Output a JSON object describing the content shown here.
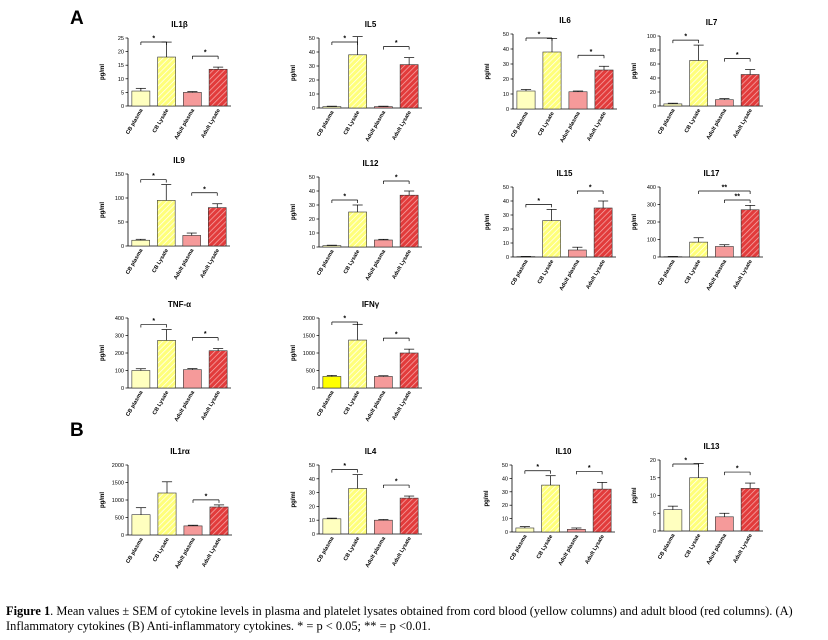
{
  "panels": {
    "a": "A",
    "b": "B"
  },
  "caption": {
    "lead": "Figure 1",
    "text": ". Mean values ± SEM of cytokine levels in plasma and platelet lysates obtained from cord blood (yellow columns) and adult blood (red columns). (A) Inflammatory cytokines (B) Anti-inflammatory cytokines. * = p < 0.05; ** = p <0.01."
  },
  "colors": {
    "cb_plasma": "#ffffbf",
    "cb_plasma_bright": "#ffff00",
    "cb_lysate": "#ffff7a",
    "adult_plasma": "#f59a9a",
    "adult_lysate": "#e23b3b",
    "hatch": "#ffffff"
  },
  "chart_data": [
    {
      "type": "bar",
      "title": "IL1β",
      "ylabel": "pg/ml",
      "categories": [
        "CB plasma",
        "CB Lysate",
        "Adult plasma",
        "Adult Lysate"
      ],
      "values": [
        5.5,
        18,
        5,
        13.5
      ],
      "errors": [
        1,
        5.5,
        0.3,
        0.8
      ],
      "ylim": [
        0,
        25
      ],
      "yticks": [
        0,
        5,
        10,
        15,
        20,
        25
      ],
      "sig": [
        {
          "from": 0,
          "to": 1,
          "label": "*"
        },
        {
          "from": 2,
          "to": 3,
          "label": "*"
        }
      ]
    },
    {
      "type": "bar",
      "title": "IL5",
      "ylabel": "pg/ml",
      "categories": [
        "CB plasma",
        "CB Lysate",
        "Adult plasma",
        "Adult Lysate"
      ],
      "values": [
        1,
        38,
        1,
        31
      ],
      "errors": [
        0.3,
        13,
        0.3,
        5
      ],
      "ylim": [
        0,
        50
      ],
      "yticks": [
        0,
        10,
        20,
        30,
        40,
        50
      ],
      "sig": [
        {
          "from": 0,
          "to": 1,
          "label": "*"
        },
        {
          "from": 2,
          "to": 3,
          "label": "*"
        }
      ]
    },
    {
      "type": "bar",
      "title": "IL6",
      "ylabel": "pg/ml",
      "categories": [
        "CB plasma",
        "CB Lysate",
        "Adult plasma",
        "Adult Lysate"
      ],
      "values": [
        12,
        38,
        11.5,
        26
      ],
      "errors": [
        1,
        9,
        0.5,
        2.5
      ],
      "ylim": [
        0,
        50
      ],
      "yticks": [
        0,
        10,
        20,
        30,
        40,
        50
      ],
      "sig": [
        {
          "from": 0,
          "to": 1,
          "label": "*"
        },
        {
          "from": 2,
          "to": 3,
          "label": "*"
        }
      ]
    },
    {
      "type": "bar",
      "title": "IL7",
      "ylabel": "pg/ml",
      "categories": [
        "CB plasma",
        "CB Lysate",
        "Adult plasma",
        "Adult Lysate"
      ],
      "values": [
        3,
        65,
        9,
        45
      ],
      "errors": [
        1,
        22,
        1.5,
        7
      ],
      "ylim": [
        0,
        100
      ],
      "yticks": [
        0,
        20,
        40,
        60,
        80,
        100
      ],
      "sig": [
        {
          "from": 0,
          "to": 1,
          "label": "*"
        },
        {
          "from": 2,
          "to": 3,
          "label": "*"
        }
      ]
    },
    {
      "type": "bar",
      "title": "IL9",
      "ylabel": "pg/ml",
      "categories": [
        "CB plasma",
        "CB Lysate",
        "Adult plasma",
        "Adult Lysate"
      ],
      "values": [
        12,
        95,
        22,
        80
      ],
      "errors": [
        2,
        33,
        5,
        8
      ],
      "ylim": [
        0,
        150
      ],
      "yticks": [
        0,
        50,
        100,
        150
      ],
      "sig": [
        {
          "from": 0,
          "to": 1,
          "label": "*"
        },
        {
          "from": 2,
          "to": 3,
          "label": "*"
        }
      ]
    },
    {
      "type": "bar",
      "title": "IL12",
      "ylabel": "pg/ml",
      "categories": [
        "CB plasma",
        "CB Lysate",
        "Adult plasma",
        "Adult Lysate"
      ],
      "values": [
        1,
        25,
        5,
        37
      ],
      "errors": [
        0.3,
        5,
        0.5,
        3
      ],
      "ylim": [
        0,
        50
      ],
      "yticks": [
        0,
        10,
        20,
        30,
        40,
        50
      ],
      "sig": [
        {
          "from": 0,
          "to": 1,
          "label": "*"
        },
        {
          "from": 2,
          "to": 3,
          "label": "*"
        }
      ]
    },
    {
      "type": "bar",
      "title": "IL15",
      "ylabel": "pg/ml",
      "categories": [
        "CB plasma",
        "CB Lysate",
        "Adult plasma",
        "Adult Lysate"
      ],
      "values": [
        0.3,
        26,
        5,
        35
      ],
      "errors": [
        0.1,
        8,
        2,
        5
      ],
      "ylim": [
        0,
        50
      ],
      "yticks": [
        0,
        10,
        20,
        30,
        40,
        50
      ],
      "sig": [
        {
          "from": 0,
          "to": 1,
          "label": "*"
        },
        {
          "from": 2,
          "to": 3,
          "label": "*"
        }
      ]
    },
    {
      "type": "bar",
      "title": "IL17",
      "ylabel": "pg/ml",
      "categories": [
        "CB plasma",
        "CB Lysate",
        "Adult plasma",
        "Adult Lysate"
      ],
      "values": [
        2,
        85,
        60,
        270
      ],
      "errors": [
        1,
        25,
        10,
        25
      ],
      "ylim": [
        0,
        400
      ],
      "yticks": [
        0,
        100,
        200,
        300,
        400
      ],
      "sig": [
        {
          "from": 1,
          "to": 3,
          "label": "**"
        },
        {
          "from": 2,
          "to": 3,
          "label": "**"
        }
      ]
    },
    {
      "type": "bar",
      "title": "TNF-α",
      "ylabel": "pg/ml",
      "categories": [
        "CB plasma",
        "CB Lysate",
        "Adult plasma",
        "Adult Lysate"
      ],
      "values": [
        100,
        272,
        105,
        213
      ],
      "errors": [
        10,
        62,
        6,
        12
      ],
      "ylim": [
        0,
        400
      ],
      "yticks": [
        0,
        100,
        200,
        300,
        400
      ],
      "sig": [
        {
          "from": 0,
          "to": 1,
          "label": "*"
        },
        {
          "from": 2,
          "to": 3,
          "label": "*"
        }
      ]
    },
    {
      "type": "bar",
      "title": "IFNγ",
      "ylabel": "pg/ml",
      "categories": [
        "CB plasma",
        "CB Lysate",
        "Adult plasma",
        "Adult Lysate"
      ],
      "values": [
        330,
        1370,
        330,
        1000
      ],
      "errors": [
        30,
        450,
        20,
        110
      ],
      "ylim": [
        0,
        2000
      ],
      "yticks": [
        0,
        500,
        1000,
        1500,
        2000
      ],
      "sig": [
        {
          "from": 0,
          "to": 1,
          "label": "*"
        },
        {
          "from": 2,
          "to": 3,
          "label": "*"
        }
      ]
    },
    {
      "type": "bar",
      "title": "IL1rα",
      "ylabel": "pg/ml",
      "categories": [
        "CB plasma",
        "CB Lysate",
        "Adult plasma",
        "Adult Lysate"
      ],
      "values": [
        580,
        1200,
        260,
        800
      ],
      "errors": [
        200,
        320,
        20,
        60
      ],
      "ylim": [
        0,
        2000
      ],
      "yticks": [
        0,
        500,
        1000,
        1500,
        2000
      ],
      "sig": [
        {
          "from": 2,
          "to": 3,
          "label": "*"
        }
      ]
    },
    {
      "type": "bar",
      "title": "IL4",
      "ylabel": "pg/ml",
      "categories": [
        "CB plasma",
        "CB Lysate",
        "Adult plasma",
        "Adult Lysate"
      ],
      "values": [
        11,
        33,
        10,
        26
      ],
      "errors": [
        0.5,
        10,
        0.5,
        1.5
      ],
      "ylim": [
        0,
        50
      ],
      "yticks": [
        0,
        10,
        20,
        30,
        40,
        50
      ],
      "sig": [
        {
          "from": 0,
          "to": 1,
          "label": "*"
        },
        {
          "from": 2,
          "to": 3,
          "label": "*"
        }
      ]
    },
    {
      "type": "bar",
      "title": "IL10",
      "ylabel": "pg/ml",
      "categories": [
        "CB plasma",
        "CB Lysate",
        "Adult plasma",
        "Adult Lysate"
      ],
      "values": [
        3,
        35,
        2,
        32
      ],
      "errors": [
        1,
        7,
        1,
        5
      ],
      "ylim": [
        0,
        50
      ],
      "yticks": [
        0,
        10,
        20,
        30,
        40,
        50
      ],
      "sig": [
        {
          "from": 0,
          "to": 1,
          "label": "*"
        },
        {
          "from": 2,
          "to": 3,
          "label": "*"
        }
      ]
    },
    {
      "type": "bar",
      "title": "IL13",
      "ylabel": "pg/ml",
      "categories": [
        "CB plasma",
        "CB Lysate",
        "Adult plasma",
        "Adult Lysate"
      ],
      "values": [
        6,
        15,
        4,
        12
      ],
      "errors": [
        1,
        4,
        1,
        1.5
      ],
      "ylim": [
        0,
        20
      ],
      "yticks": [
        0,
        5,
        10,
        15,
        20
      ],
      "sig": [
        {
          "from": 0,
          "to": 1,
          "label": "*"
        },
        {
          "from": 2,
          "to": 3,
          "label": "*"
        }
      ]
    }
  ]
}
